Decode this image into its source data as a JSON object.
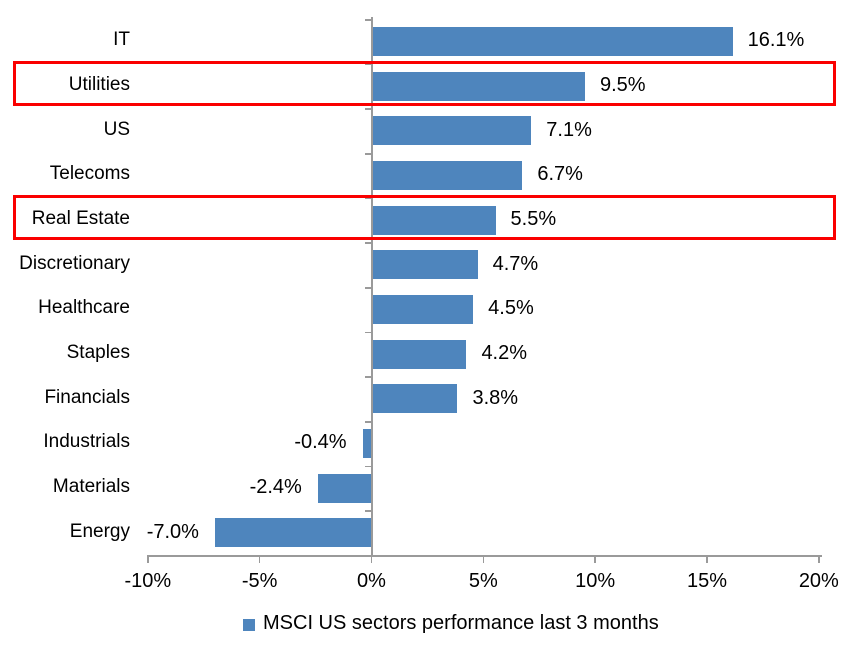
{
  "chart_data": {
    "type": "bar",
    "orientation": "horizontal",
    "title": "",
    "xlabel": "",
    "ylabel": "",
    "categories": [
      "IT",
      "Utilities",
      "US",
      "Telecoms",
      "Real Estate",
      "Discretionary",
      "Healthcare",
      "Staples",
      "Financials",
      "Industrials",
      "Materials",
      "Energy"
    ],
    "values": [
      16.1,
      9.5,
      7.1,
      6.7,
      5.5,
      4.7,
      4.5,
      4.2,
      3.8,
      -0.4,
      -2.4,
      -7.0
    ],
    "data_labels": [
      "16.1%",
      "9.5%",
      "7.1%",
      "6.7%",
      "5.5%",
      "4.7%",
      "4.5%",
      "4.2%",
      "3.8%",
      "-0.4%",
      "-2.4%",
      "-7.0%"
    ],
    "highlighted_categories": [
      "Utilities",
      "Real Estate"
    ],
    "x_tick_values": [
      -10,
      -5,
      0,
      5,
      10,
      15,
      20
    ],
    "x_tick_labels": [
      "-10%",
      "-5%",
      "0%",
      "5%",
      "10%",
      "15%",
      "20%"
    ],
    "xlim": [
      -10,
      20
    ],
    "grid": false,
    "legend_position": "bottom",
    "legend": [
      {
        "label": "MSCI US sectors performance last 3 months",
        "color": "#4e85bd"
      }
    ],
    "bar_color": "#4e85bd",
    "highlight_color": "#fa0000",
    "axis_color": "#9a9a9a",
    "text_color": "#000000"
  }
}
